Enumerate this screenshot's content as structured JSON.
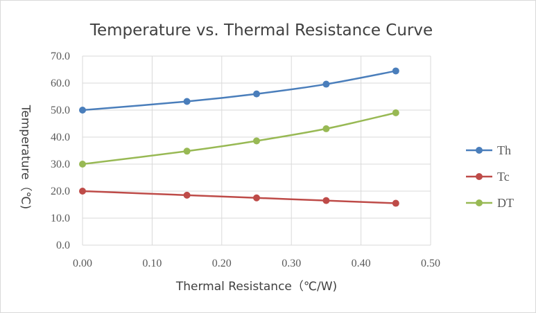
{
  "chart_data": {
    "type": "line",
    "title": "Temperature vs. Thermal Resistance Curve",
    "xlabel": "Thermal Resistance（℃/W)",
    "ylabel": "Temperature（℃)",
    "x": [
      0.0,
      0.15,
      0.25,
      0.35,
      0.45
    ],
    "xlim": [
      0.0,
      0.5
    ],
    "ylim": [
      0.0,
      70.0
    ],
    "x_ticks": [
      "0.00",
      "0.10",
      "0.20",
      "0.30",
      "0.40",
      "0.50"
    ],
    "y_ticks": [
      "0.0",
      "10.0",
      "20.0",
      "30.0",
      "40.0",
      "50.0",
      "60.0",
      "70.0"
    ],
    "grid": true,
    "legend_position": "right",
    "series": [
      {
        "name": "Th",
        "color": "#4a7ebb",
        "values": [
          50.0,
          53.2,
          56.0,
          59.6,
          64.5
        ]
      },
      {
        "name": "Tc",
        "color": "#be4b48",
        "values": [
          20.0,
          18.5,
          17.5,
          16.5,
          15.5
        ]
      },
      {
        "name": "DT",
        "color": "#98b954",
        "values": [
          30.0,
          34.8,
          38.6,
          43.1,
          49.0
        ]
      }
    ]
  }
}
